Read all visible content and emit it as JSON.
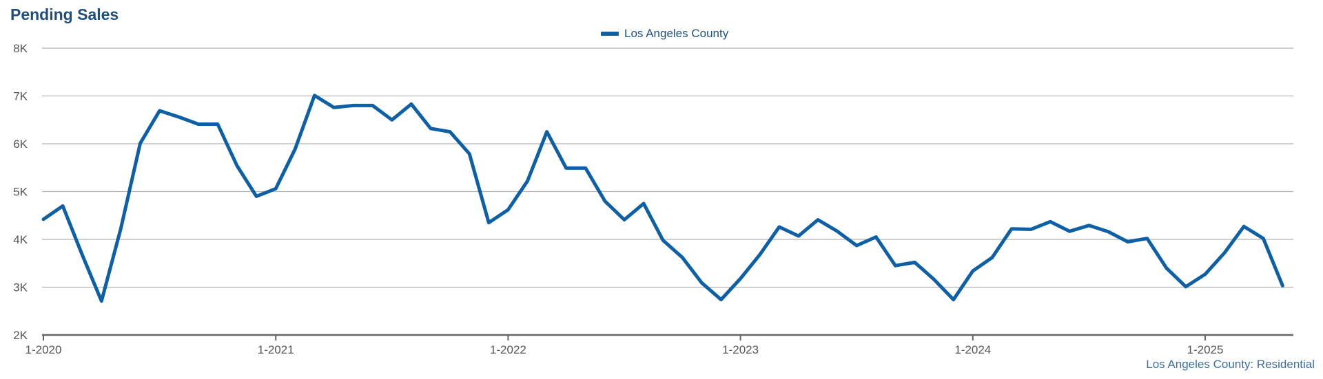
{
  "chart_data": {
    "type": "line",
    "title": "Pending Sales",
    "xlabel": "",
    "ylabel": "",
    "ylim": [
      2000,
      8000
    ],
    "yticks": [
      2000,
      3000,
      4000,
      5000,
      6000,
      7000,
      8000
    ],
    "ytick_labels": [
      "2K",
      "3K",
      "4K",
      "5K",
      "6K",
      "7K",
      "8K"
    ],
    "xticks": [
      "1-2020",
      "1-2021",
      "1-2022",
      "1-2023",
      "1-2024",
      "1-2025"
    ],
    "x": [
      "2020-01",
      "2020-02",
      "2020-03",
      "2020-04",
      "2020-05",
      "2020-06",
      "2020-07",
      "2020-08",
      "2020-09",
      "2020-10",
      "2020-11",
      "2020-12",
      "2021-01",
      "2021-02",
      "2021-03",
      "2021-04",
      "2021-05",
      "2021-06",
      "2021-07",
      "2021-08",
      "2021-09",
      "2021-10",
      "2021-11",
      "2021-12",
      "2022-01",
      "2022-02",
      "2022-03",
      "2022-04",
      "2022-05",
      "2022-06",
      "2022-07",
      "2022-08",
      "2022-09",
      "2022-10",
      "2022-11",
      "2022-12",
      "2023-01",
      "2023-02",
      "2023-03",
      "2023-04",
      "2023-05",
      "2023-06",
      "2023-07",
      "2023-08",
      "2023-09",
      "2023-10",
      "2023-11",
      "2023-12",
      "2024-01",
      "2024-02",
      "2024-03",
      "2024-04",
      "2024-05",
      "2024-06",
      "2024-07",
      "2024-08",
      "2024-09",
      "2024-10",
      "2024-11",
      "2024-12",
      "2025-01",
      "2025-02",
      "2025-03",
      "2025-04",
      "2025-05"
    ],
    "series": [
      {
        "name": "Los Angeles County",
        "color": "#0d5fa6",
        "values": [
          4420,
          4700,
          3680,
          2710,
          4230,
          6010,
          6690,
          6560,
          6410,
          6410,
          5540,
          4900,
          5060,
          5890,
          7010,
          6760,
          6800,
          6800,
          6500,
          6830,
          6320,
          6250,
          5790,
          4350,
          4620,
          5220,
          6250,
          5490,
          5490,
          4800,
          4410,
          4750,
          3980,
          3620,
          3090,
          2740,
          3180,
          3680,
          4260,
          4070,
          4410,
          4170,
          3870,
          4050,
          3450,
          3520,
          3160,
          2740,
          3340,
          3620,
          4220,
          4210,
          4370,
          4170,
          4290,
          4160,
          3950,
          4020,
          3400,
          3010,
          3270,
          3720,
          4270,
          4020,
          3030
        ]
      }
    ],
    "grid": true,
    "legend_position": "top-center",
    "footnote": "Los Angeles County: Residential"
  }
}
